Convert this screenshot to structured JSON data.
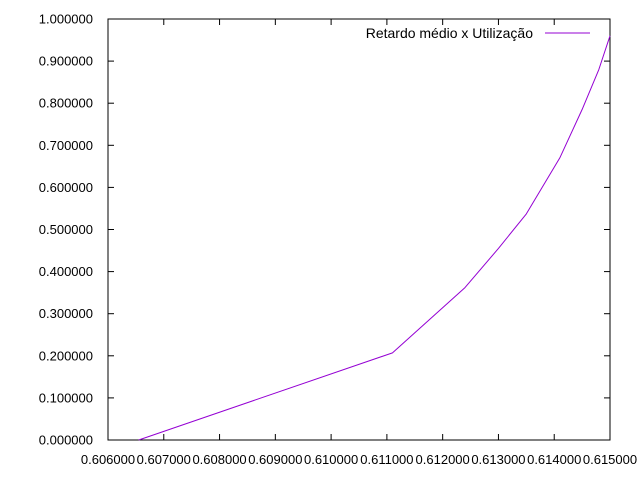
{
  "chart_data": {
    "type": "line",
    "title": "",
    "xlabel": "",
    "ylabel": "",
    "xlim": [
      0.606,
      0.615
    ],
    "ylim": [
      0.0,
      1.0
    ],
    "x_tick_labels": [
      "0.606000",
      "0.607000",
      "0.608000",
      "0.609000",
      "0.610000",
      "0.611000",
      "0.612000",
      "0.613000",
      "0.614000",
      "0.615000"
    ],
    "y_tick_labels": [
      "0.000000",
      "0.100000",
      "0.200000",
      "0.300000",
      "0.400000",
      "0.500000",
      "0.600000",
      "0.700000",
      "0.800000",
      "0.900000",
      "1.000000"
    ],
    "grid": false,
    "legend_position": "top-right",
    "series": [
      {
        "name": "Retardo médio x Utilização",
        "color": "#9400d3",
        "points": [
          {
            "x": 0.60655,
            "y": 0.0
          },
          {
            "x": 0.6111,
            "y": 0.207
          },
          {
            "x": 0.6124,
            "y": 0.362
          },
          {
            "x": 0.613,
            "y": 0.455
          },
          {
            "x": 0.6135,
            "y": 0.537
          },
          {
            "x": 0.6141,
            "y": 0.67
          },
          {
            "x": 0.6145,
            "y": 0.785
          },
          {
            "x": 0.6148,
            "y": 0.88
          },
          {
            "x": 0.615,
            "y": 0.96
          }
        ]
      }
    ]
  }
}
